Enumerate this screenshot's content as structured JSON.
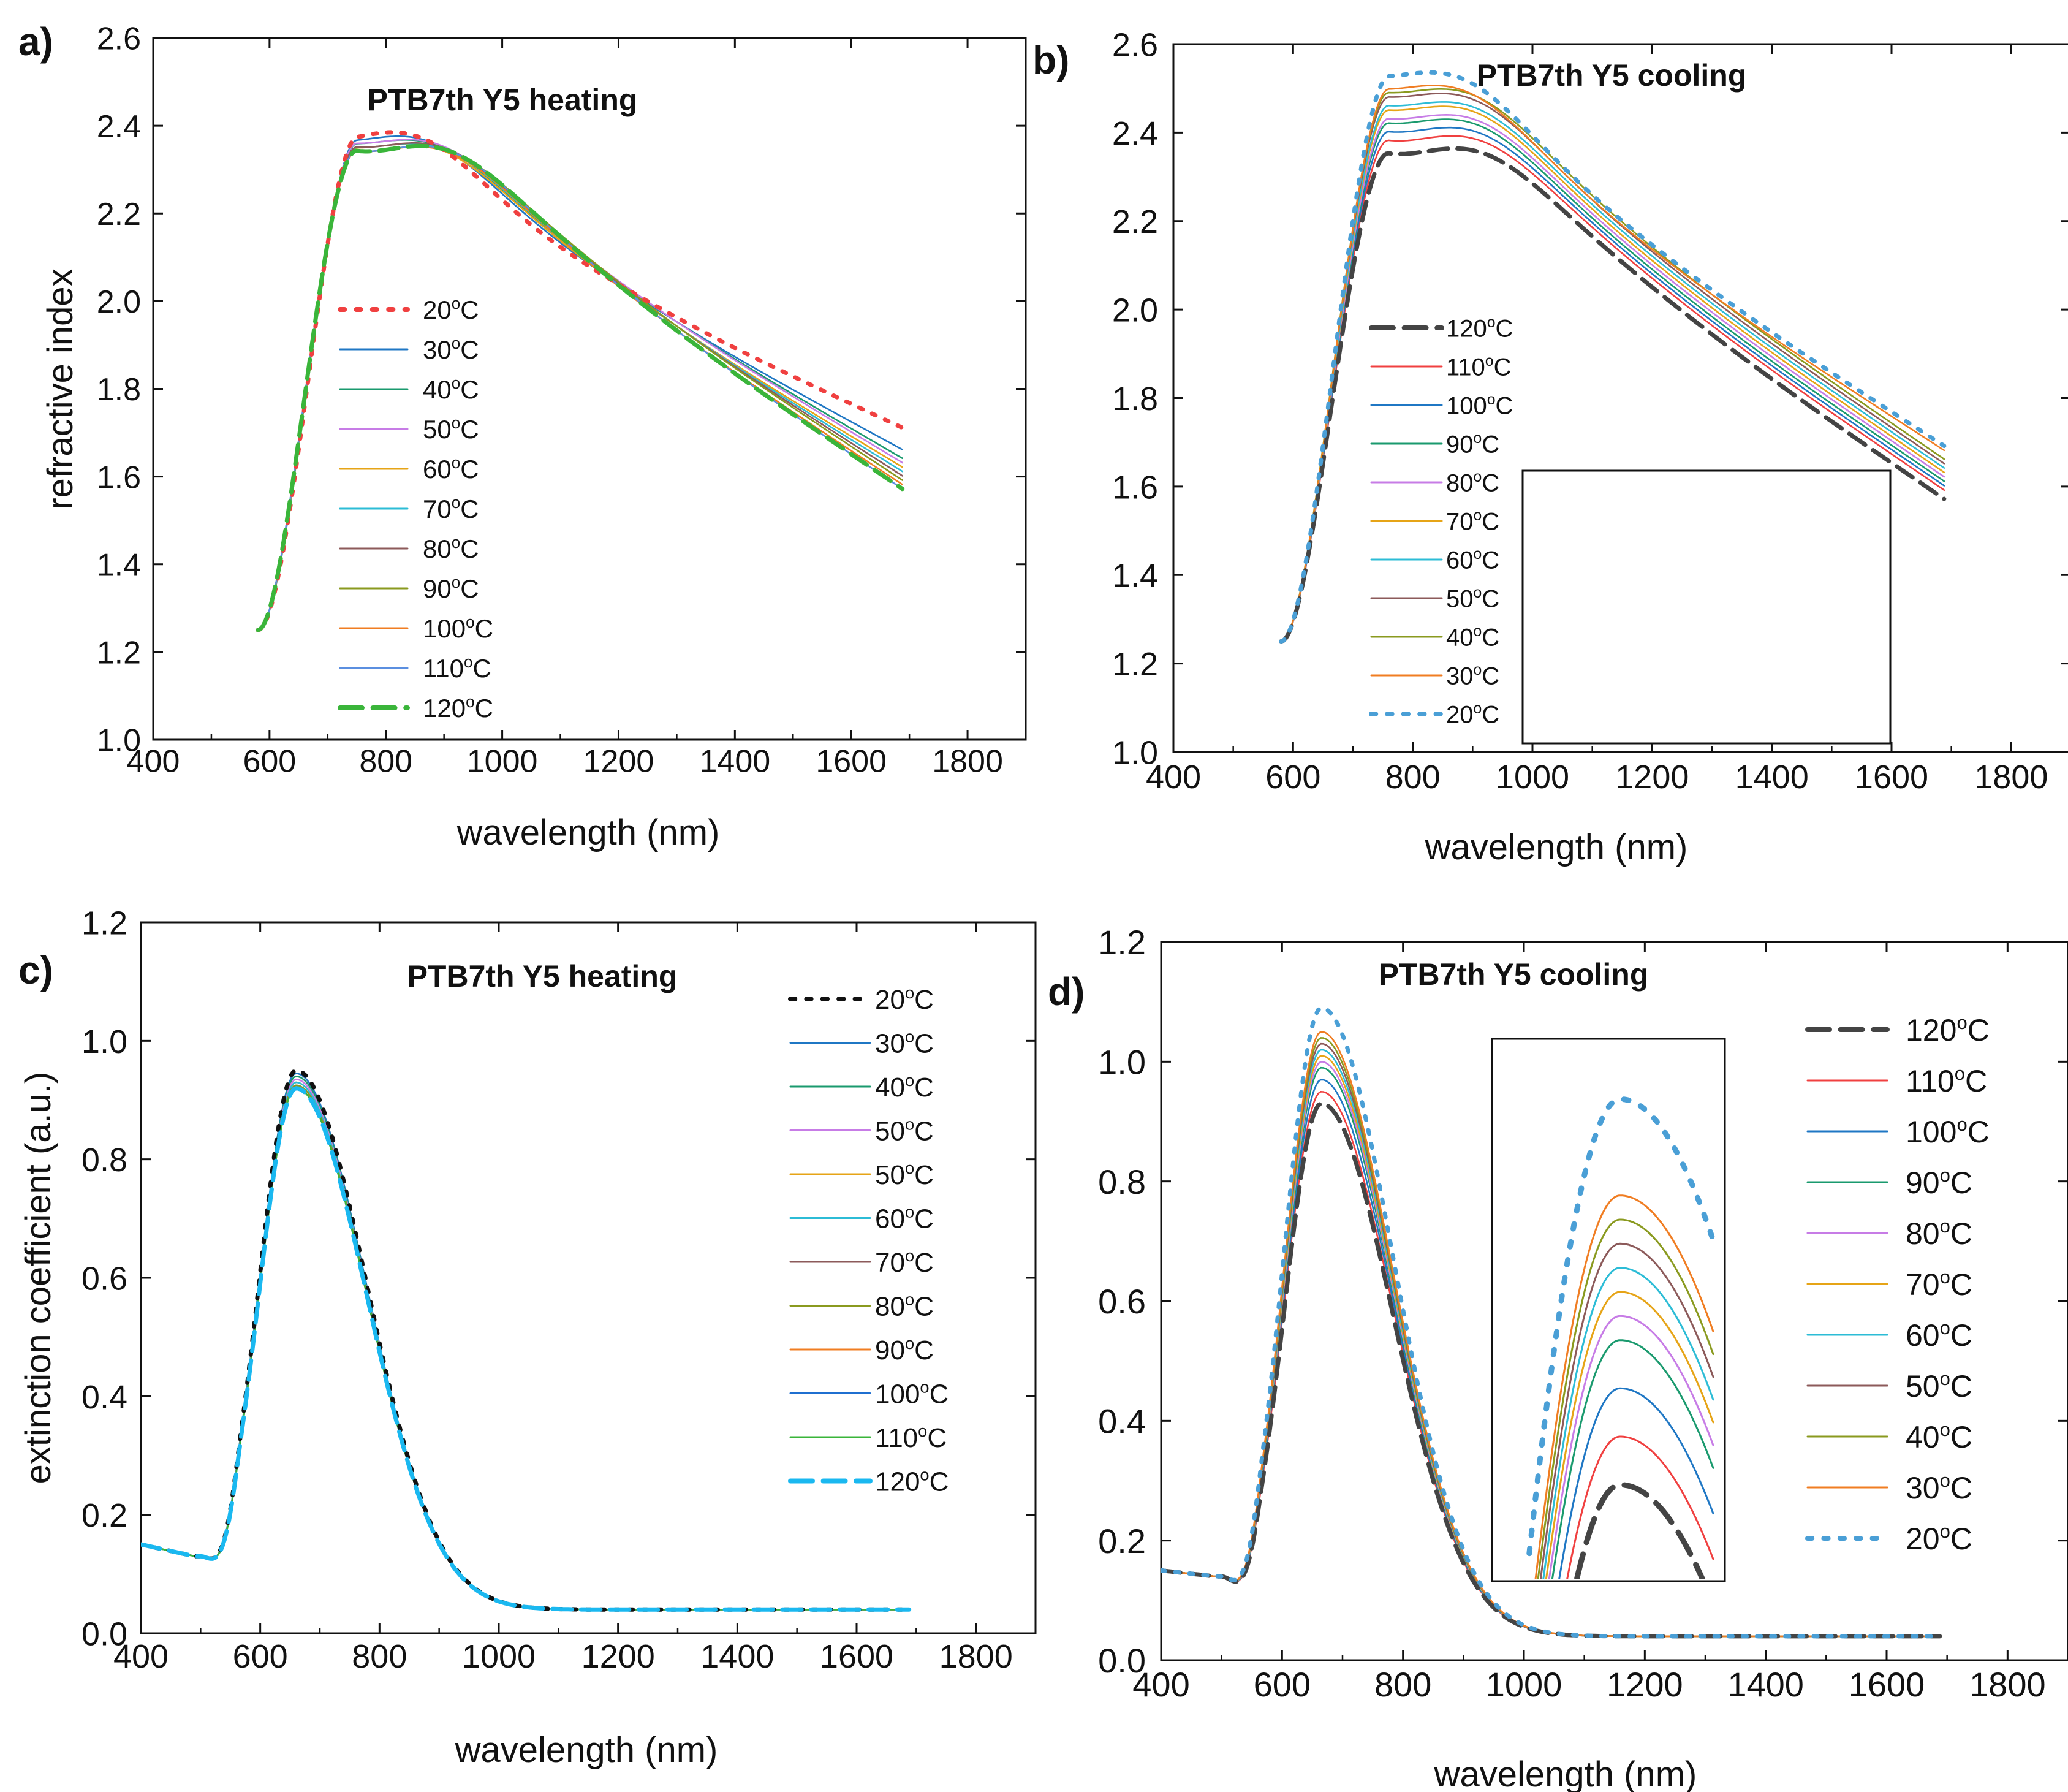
{
  "chart_data": [
    {
      "panel_label": "a)",
      "type": "line",
      "title": "PTB7th Y5 heating",
      "xlabel": "wavelength (nm)",
      "ylabel": "refractive index",
      "xlim": [
        400,
        1900
      ],
      "ylim": [
        1.0,
        2.6
      ],
      "xticks": [
        "400",
        "600",
        "800",
        "1000",
        "1200",
        "1400",
        "1600",
        "1800"
      ],
      "yticks": [
        "1.0",
        "1.2",
        "1.4",
        "1.6",
        "1.8",
        "2.0",
        "2.2",
        "2.4",
        "2.6"
      ],
      "legend_position": "left-center",
      "curve_shape": {
        "x_start": 580,
        "x_end": 1690,
        "start_value": 1.25,
        "peak_x": 790
      },
      "series": [
        {
          "name": "20°C",
          "label_base": "20",
          "label_unit": "°C",
          "color": "#f04040",
          "dash": "dot",
          "peak": 2.35,
          "mid": 1.95,
          "end": 1.71
        },
        {
          "name": "30°C",
          "label_base": "30",
          "label_unit": "°C",
          "color": "#1f77c4",
          "dash": "solid",
          "peak": 2.34,
          "mid": 1.94,
          "end": 1.66
        },
        {
          "name": "40°C",
          "label_base": "40",
          "label_unit": "°C",
          "color": "#1a9a6e",
          "dash": "solid",
          "peak": 2.33,
          "mid": 1.94,
          "end": 1.64
        },
        {
          "name": "50°C",
          "label_base": "50",
          "label_unit": "°C",
          "color": "#c77ce6",
          "dash": "solid",
          "peak": 2.33,
          "mid": 1.94,
          "end": 1.63
        },
        {
          "name": "60°C",
          "label_base": "60",
          "label_unit": "°C",
          "color": "#e6a417",
          "dash": "solid",
          "peak": 2.32,
          "mid": 1.93,
          "end": 1.62
        },
        {
          "name": "70°C",
          "label_base": "70",
          "label_unit": "°C",
          "color": "#2cbcd6",
          "dash": "solid",
          "peak": 2.32,
          "mid": 1.93,
          "end": 1.61
        },
        {
          "name": "80°C",
          "label_base": "80",
          "label_unit": "°C",
          "color": "#8c5a5a",
          "dash": "solid",
          "peak": 2.32,
          "mid": 1.93,
          "end": 1.6
        },
        {
          "name": "90°C",
          "label_base": "90",
          "label_unit": "°C",
          "color": "#8a9a1f",
          "dash": "solid",
          "peak": 2.31,
          "mid": 1.93,
          "end": 1.59
        },
        {
          "name": "100°C",
          "label_base": "100",
          "label_unit": "°C",
          "color": "#f07d22",
          "dash": "solid",
          "peak": 2.31,
          "mid": 1.92,
          "end": 1.58
        },
        {
          "name": "110°C",
          "label_base": "110",
          "label_unit": "°C",
          "color": "#5b8fe0",
          "dash": "solid",
          "peak": 2.31,
          "mid": 1.92,
          "end": 1.57
        },
        {
          "name": "120°C",
          "label_base": "120",
          "label_unit": "°C",
          "color": "#3ab53a",
          "dash": "dash",
          "peak": 2.31,
          "mid": 1.92,
          "end": 1.57
        }
      ]
    },
    {
      "panel_label": "b)",
      "type": "line",
      "title": "PTB7th Y5 cooling",
      "xlabel": "wavelength (nm)",
      "ylabel": "",
      "xlim": [
        400,
        1900
      ],
      "ylim": [
        1.0,
        2.6
      ],
      "xticks": [
        "400",
        "600",
        "800",
        "1000",
        "1200",
        "1400",
        "1600",
        "1800"
      ],
      "yticks": [
        "1.0",
        "1.2",
        "1.4",
        "1.6",
        "1.8",
        "2.0",
        "2.2",
        "2.4",
        "2.6"
      ],
      "legend_position": "left-center",
      "has_inset": true,
      "curve_shape": {
        "x_start": 580,
        "x_end": 1690,
        "start_value": 1.25,
        "peak_x": 800
      },
      "series": [
        {
          "name": "120°C",
          "label_base": "120",
          "label_unit": "°C",
          "color": "#444444",
          "dash": "dash",
          "peak": 2.32,
          "mid": 1.93,
          "end": 1.57
        },
        {
          "name": "110°C",
          "label_base": "110",
          "label_unit": "°C",
          "color": "#f04040",
          "dash": "solid",
          "peak": 2.35,
          "mid": 1.95,
          "end": 1.59
        },
        {
          "name": "100°C",
          "label_base": "100",
          "label_unit": "°C",
          "color": "#1f77c4",
          "dash": "solid",
          "peak": 2.37,
          "mid": 1.96,
          "end": 1.6
        },
        {
          "name": "90°C",
          "label_base": "90",
          "label_unit": "°C",
          "color": "#1a9a6e",
          "dash": "solid",
          "peak": 2.39,
          "mid": 1.97,
          "end": 1.61
        },
        {
          "name": "80°C",
          "label_base": "80",
          "label_unit": "°C",
          "color": "#c77ce6",
          "dash": "solid",
          "peak": 2.4,
          "mid": 1.98,
          "end": 1.62
        },
        {
          "name": "70°C",
          "label_base": "70",
          "label_unit": "°C",
          "color": "#e6a417",
          "dash": "solid",
          "peak": 2.42,
          "mid": 1.99,
          "end": 1.63
        },
        {
          "name": "60°C",
          "label_base": "60",
          "label_unit": "°C",
          "color": "#2cbcd6",
          "dash": "solid",
          "peak": 2.43,
          "mid": 2.0,
          "end": 1.64
        },
        {
          "name": "50°C",
          "label_base": "50",
          "label_unit": "°C",
          "color": "#8c5a5a",
          "dash": "solid",
          "peak": 2.45,
          "mid": 2.01,
          "end": 1.65
        },
        {
          "name": "40°C",
          "label_base": "40",
          "label_unit": "°C",
          "color": "#8a9a1f",
          "dash": "solid",
          "peak": 2.46,
          "mid": 2.02,
          "end": 1.66
        },
        {
          "name": "30°C",
          "label_base": "30",
          "label_unit": "°C",
          "color": "#f07d22",
          "dash": "solid",
          "peak": 2.47,
          "mid": 2.02,
          "end": 1.68
        },
        {
          "name": "20°C",
          "label_base": "20",
          "label_unit": "°C",
          "color": "#4a9fd6",
          "dash": "dot",
          "peak": 2.5,
          "mid": 2.03,
          "end": 1.69
        }
      ]
    },
    {
      "panel_label": "c)",
      "type": "line",
      "title": "PTB7th Y5 heating",
      "xlabel": "wavelength (nm)",
      "ylabel": "extinction coefficient (a.u.)",
      "xlim": [
        400,
        1900
      ],
      "ylim": [
        0.0,
        1.2
      ],
      "xticks": [
        "400",
        "600",
        "800",
        "1000",
        "1200",
        "1400",
        "1600",
        "1800"
      ],
      "yticks": [
        "0.0",
        "0.2",
        "0.4",
        "0.6",
        "0.8",
        "1.0",
        "1.2"
      ],
      "legend_position": "top-right",
      "curve_shape": {
        "x_start": 400,
        "x_end": 1690,
        "start_value": 0.15,
        "dip_value": 0.13,
        "peak_x": 660,
        "tail_value": 0.04
      },
      "series": [
        {
          "name": "20°C",
          "label_base": "20",
          "label_unit": "°C",
          "color": "#111111",
          "dash": "dot",
          "peak": 0.95
        },
        {
          "name": "30°C",
          "label_base": "30",
          "label_unit": "°C",
          "color": "#1f77c4",
          "dash": "solid",
          "peak": 0.945
        },
        {
          "name": "40°C",
          "label_base": "40",
          "label_unit": "°C",
          "color": "#1a9a6e",
          "dash": "solid",
          "peak": 0.94
        },
        {
          "name": "50°C",
          "label_base": "50",
          "label_unit": "°C",
          "color": "#c77ce6",
          "dash": "solid",
          "peak": 0.935
        },
        {
          "name": "50°C",
          "label_base": "50",
          "label_unit": "°C",
          "color": "#e6a417",
          "dash": "solid",
          "peak": 0.93
        },
        {
          "name": "60°C",
          "label_base": "60",
          "label_unit": "°C",
          "color": "#2cbcd6",
          "dash": "solid",
          "peak": 0.93
        },
        {
          "name": "70°C",
          "label_base": "70",
          "label_unit": "°C",
          "color": "#8c5a5a",
          "dash": "solid",
          "peak": 0.925
        },
        {
          "name": "80°C",
          "label_base": "80",
          "label_unit": "°C",
          "color": "#8a9a1f",
          "dash": "solid",
          "peak": 0.925
        },
        {
          "name": "90°C",
          "label_base": "90",
          "label_unit": "°C",
          "color": "#f07d22",
          "dash": "solid",
          "peak": 0.92
        },
        {
          "name": "100°C",
          "label_base": "100",
          "label_unit": "°C",
          "color": "#1f6fd0",
          "dash": "solid",
          "peak": 0.92
        },
        {
          "name": "110°C",
          "label_base": "110",
          "label_unit": "°C",
          "color": "#3ab53a",
          "dash": "solid",
          "peak": 0.92
        },
        {
          "name": "120°C",
          "label_base": "120",
          "label_unit": "°C",
          "color": "#1ab8f0",
          "dash": "dash",
          "peak": 0.92
        }
      ]
    },
    {
      "panel_label": "d)",
      "type": "line",
      "title": "PTB7th Y5 cooling",
      "xlabel": "wavelength (nm)",
      "ylabel": "",
      "xlim": [
        400,
        1900
      ],
      "ylim": [
        0.0,
        1.2
      ],
      "xticks": [
        "400",
        "600",
        "800",
        "1000",
        "1200",
        "1400",
        "1600",
        "1800"
      ],
      "yticks": [
        "0.0",
        "0.2",
        "0.4",
        "0.6",
        "0.8",
        "1.0",
        "1.2"
      ],
      "legend_position": "top-right",
      "has_inset": true,
      "curve_shape": {
        "x_start": 400,
        "x_end": 1690,
        "start_value": 0.15,
        "dip_value": 0.14,
        "peak_x": 665,
        "tail_value": 0.04
      },
      "series": [
        {
          "name": "120°C",
          "label_base": "120",
          "label_unit": "°C",
          "color": "#444444",
          "dash": "dash",
          "peak": 0.93
        },
        {
          "name": "110°C",
          "label_base": "110",
          "label_unit": "°C",
          "color": "#f04040",
          "dash": "solid",
          "peak": 0.95
        },
        {
          "name": "100°C",
          "label_base": "100",
          "label_unit": "°C",
          "color": "#1f77c4",
          "dash": "solid",
          "peak": 0.97
        },
        {
          "name": "90°C",
          "label_base": "90",
          "label_unit": "°C",
          "color": "#1a9a6e",
          "dash": "solid",
          "peak": 0.99
        },
        {
          "name": "80°C",
          "label_base": "80",
          "label_unit": "°C",
          "color": "#c77ce6",
          "dash": "solid",
          "peak": 1.0
        },
        {
          "name": "70°C",
          "label_base": "70",
          "label_unit": "°C",
          "color": "#e6a417",
          "dash": "solid",
          "peak": 1.01
        },
        {
          "name": "60°C",
          "label_base": "60",
          "label_unit": "°C",
          "color": "#2cbcd6",
          "dash": "solid",
          "peak": 1.02
        },
        {
          "name": "50°C",
          "label_base": "50",
          "label_unit": "°C",
          "color": "#8c5a5a",
          "dash": "solid",
          "peak": 1.03
        },
        {
          "name": "40°C",
          "label_base": "40",
          "label_unit": "°C",
          "color": "#8a9a1f",
          "dash": "solid",
          "peak": 1.04
        },
        {
          "name": "30°C",
          "label_base": "30",
          "label_unit": "°C",
          "color": "#f07d22",
          "dash": "solid",
          "peak": 1.05
        },
        {
          "name": "20°C",
          "label_base": "20",
          "label_unit": "°C",
          "color": "#4a9fd6",
          "dash": "dot",
          "peak": 1.09
        }
      ]
    }
  ]
}
